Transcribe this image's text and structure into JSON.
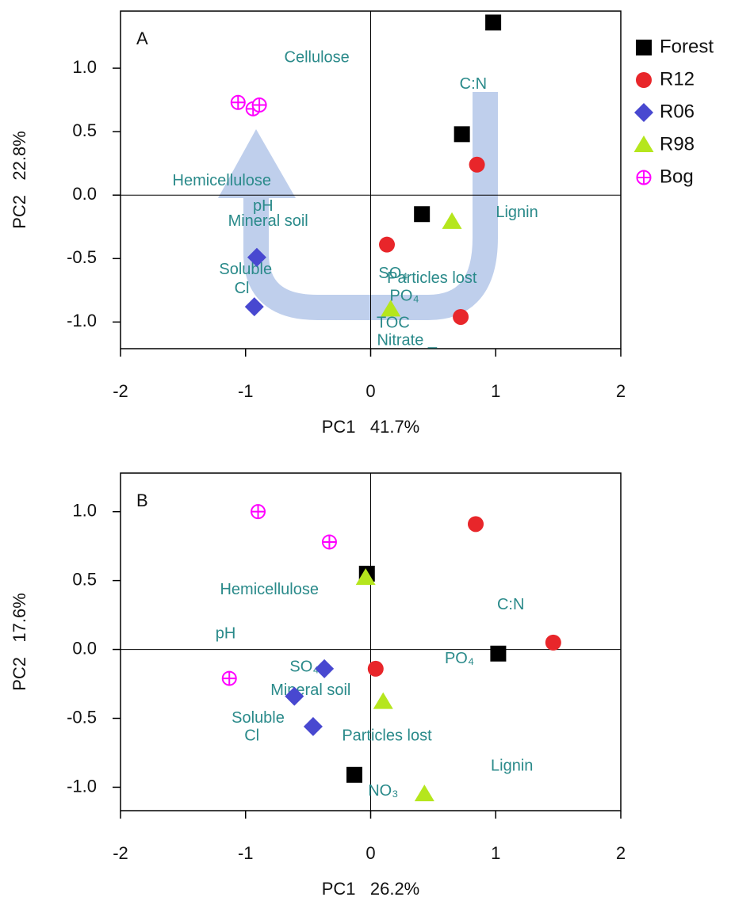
{
  "chart_data": [
    {
      "type": "scatter",
      "panel_label": "A",
      "xlabel": "PC1   41.7%",
      "ylabel": "PC2   22.8%",
      "xlim": [
        -2,
        2
      ],
      "ylim": [
        -1.21,
        1.45
      ],
      "xticks": [
        -2,
        -1,
        0,
        1,
        2
      ],
      "yticks": [
        {
          "value": -1,
          "label": "-1.0"
        },
        -0.5,
        {
          "value": 0,
          "label": "0.0"
        },
        0.5,
        {
          "value": 1,
          "label": "1.0"
        }
      ],
      "zero_lines": true,
      "legend": "right",
      "series": [
        {
          "name": "Forest",
          "color": "#000000",
          "marker": "square",
          "x": [
            0.98,
            0.73,
            0.41
          ],
          "values": [
            1.36,
            0.48,
            -0.15
          ]
        },
        {
          "name": "R12",
          "color": "#e8262a",
          "marker": "circle",
          "x": [
            0.85,
            0.13,
            0.72
          ],
          "values": [
            0.24,
            -0.39,
            -0.96
          ]
        },
        {
          "name": "R06",
          "color": "#4848d0",
          "marker": "diamond",
          "x": [
            -0.91,
            -0.93
          ],
          "values": [
            -0.49,
            -0.88
          ]
        },
        {
          "name": "R98",
          "color": "#b5e61d",
          "marker": "triangle",
          "x": [
            0.65,
            0.16
          ],
          "values": [
            -0.21,
            -0.9
          ]
        },
        {
          "name": "Bog",
          "color": "#ff00ff",
          "marker": "circle-plus",
          "x": [
            -1.06,
            -0.94,
            -0.89
          ],
          "values": [
            0.73,
            0.68,
            0.71
          ]
        }
      ],
      "annotations": [
        {
          "text": "Cellulose",
          "x": -0.43,
          "y": 1.08
        },
        {
          "text": "C:N",
          "x": 0.82,
          "y": 0.87
        },
        {
          "text": "Hemicellulose",
          "x": -1.19,
          "y": 0.11
        },
        {
          "text": "pH",
          "x": -0.86,
          "y": -0.09
        },
        {
          "text": "Mineral soil",
          "x": -0.82,
          "y": -0.21
        },
        {
          "text": "Lignin",
          "x": 1.17,
          "y": -0.14
        },
        {
          "text": "Soluble",
          "x": -1.0,
          "y": -0.59
        },
        {
          "text": "Cl",
          "x": -1.03,
          "y": -0.74
        },
        {
          "text": "SO₄",
          "x": 0.18,
          "y": -0.62
        },
        {
          "text": "Particles lost",
          "x": 0.49,
          "y": -0.66
        },
        {
          "text": "PO₄",
          "x": 0.27,
          "y": -0.8
        },
        {
          "text": "TOC",
          "x": 0.18,
          "y": -1.01
        },
        {
          "text": "Nitrate _",
          "x": 0.29,
          "y": -1.15
        }
      ]
    },
    {
      "type": "scatter",
      "panel_label": "B",
      "xlabel": "PC1   26.2%",
      "ylabel": "PC2   17.6%",
      "xlim": [
        -2,
        2
      ],
      "ylim": [
        -1.17,
        1.28
      ],
      "xticks": [
        -2,
        -1,
        0,
        1,
        2
      ],
      "yticks": [
        {
          "value": -1,
          "label": "-1.0"
        },
        -0.5,
        {
          "value": 0,
          "label": "0.0"
        },
        0.5,
        {
          "value": 1,
          "label": "1.0"
        }
      ],
      "zero_lines": true,
      "series": [
        {
          "name": "Forest",
          "color": "#000000",
          "marker": "square",
          "x": [
            -0.03,
            1.02,
            -0.13
          ],
          "values": [
            0.55,
            -0.03,
            -0.91
          ]
        },
        {
          "name": "R12",
          "color": "#e8262a",
          "marker": "circle",
          "x": [
            0.84,
            1.46,
            0.04
          ],
          "values": [
            0.91,
            0.05,
            -0.14
          ]
        },
        {
          "name": "R06",
          "color": "#4848d0",
          "marker": "diamond",
          "x": [
            -0.37,
            -0.61,
            -0.46
          ],
          "values": [
            -0.14,
            -0.34,
            -0.56
          ]
        },
        {
          "name": "R98",
          "color": "#b5e61d",
          "marker": "triangle",
          "x": [
            -0.04,
            0.1,
            0.43
          ],
          "values": [
            0.52,
            -0.38,
            -1.05
          ]
        },
        {
          "name": "Bog",
          "color": "#ff00ff",
          "marker": "circle-plus",
          "x": [
            -0.9,
            -0.33,
            -1.13
          ],
          "values": [
            1.0,
            0.78,
            -0.21
          ]
        }
      ],
      "annotations": [
        {
          "text": "Hemicellulose",
          "x": -0.81,
          "y": 0.43
        },
        {
          "text": "C:N",
          "x": 1.12,
          "y": 0.32
        },
        {
          "text": "pH",
          "x": -1.16,
          "y": 0.11
        },
        {
          "text": "PO₄",
          "x": 0.71,
          "y": -0.07
        },
        {
          "text": "SO₄",
          "x": -0.53,
          "y": -0.13
        },
        {
          "text": "Mineral soil",
          "x": -0.48,
          "y": -0.3
        },
        {
          "text": "Soluble",
          "x": -0.9,
          "y": -0.5
        },
        {
          "text": "Cl",
          "x": -0.95,
          "y": -0.63
        },
        {
          "text": "Particles lost",
          "x": 0.13,
          "y": -0.63
        },
        {
          "text": "Lignin",
          "x": 1.13,
          "y": -0.85
        },
        {
          "text": "NO₃",
          "x": 0.1,
          "y": -1.03
        }
      ]
    }
  ]
}
